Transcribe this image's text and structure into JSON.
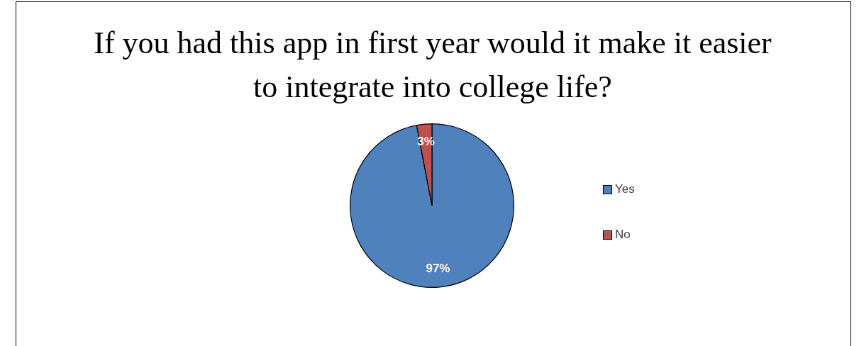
{
  "chart_data": {
    "type": "pie",
    "title": "If you had this app in first year would it make it easier to integrate into college life?",
    "categories": [
      "Yes",
      "No"
    ],
    "values": [
      97,
      3
    ],
    "colors": [
      "#4f81bd",
      "#c0504d"
    ],
    "value_labels": [
      "97%",
      "3%"
    ],
    "legend": "right"
  }
}
